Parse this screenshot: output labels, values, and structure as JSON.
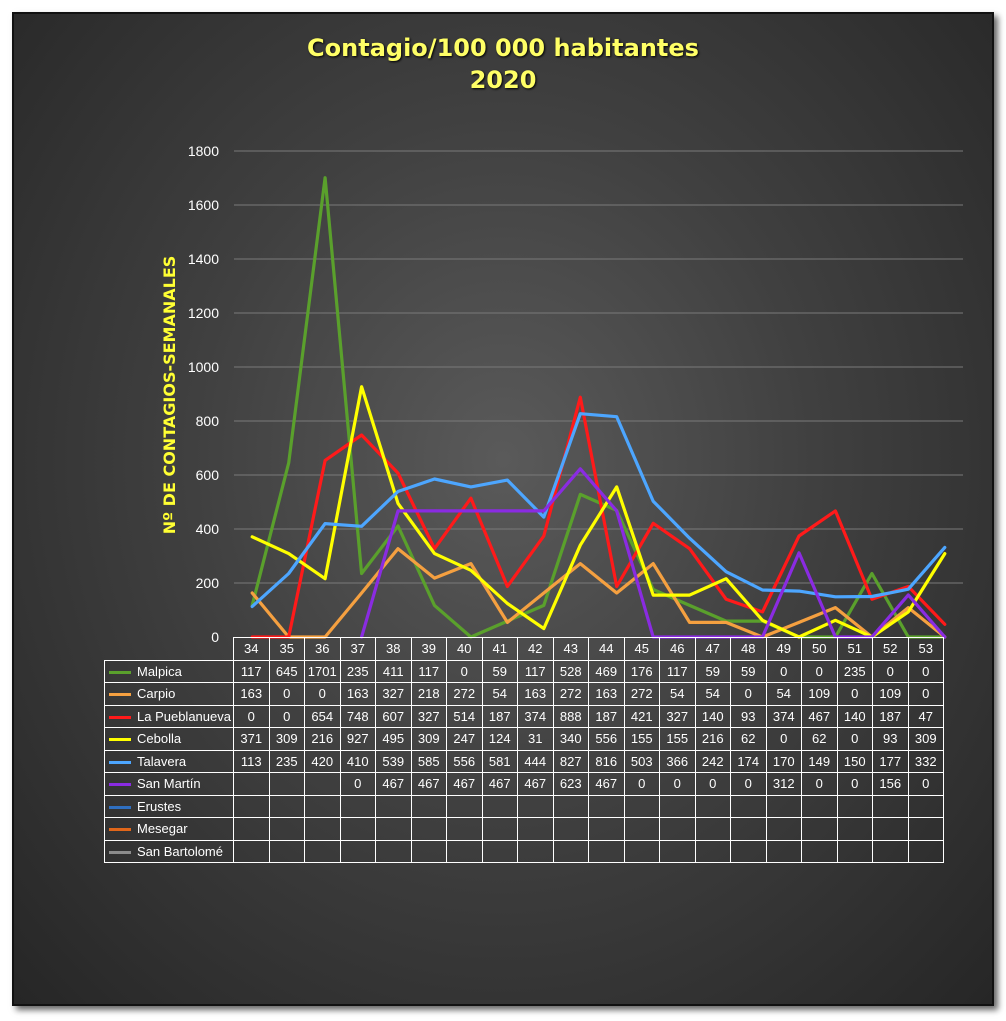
{
  "title_line1": "Contagio/100 000 habitantes",
  "title_line2": "2020",
  "chart_data": {
    "type": "line",
    "title": "Contagio/100 000 habitantes 2020",
    "xlabel": "",
    "ylabel": "Nº DE CONTAGIOS-SEMANALES",
    "ylim": [
      0,
      1800
    ],
    "yticks": [
      0,
      200,
      400,
      600,
      800,
      1000,
      1200,
      1400,
      1600,
      1800
    ],
    "grid": true,
    "legend": "data-table-below",
    "categories": [
      "34",
      "35",
      "36",
      "37",
      "38",
      "39",
      "40",
      "41",
      "42",
      "43",
      "44",
      "45",
      "46",
      "47",
      "48",
      "49",
      "50",
      "51",
      "52",
      "53"
    ],
    "series": [
      {
        "name": "Malpica",
        "color": "#5aa02c",
        "values": [
          117,
          645,
          1701,
          235,
          411,
          117,
          0,
          59,
          117,
          528,
          469,
          176,
          117,
          59,
          59,
          0,
          0,
          235,
          0,
          0
        ]
      },
      {
        "name": "Carpio",
        "color": "#f5a040",
        "values": [
          163,
          0,
          0,
          163,
          327,
          218,
          272,
          54,
          163,
          272,
          163,
          272,
          54,
          54,
          0,
          54,
          109,
          0,
          109,
          0
        ]
      },
      {
        "name": "La Pueblanueva",
        "color": "#ff1a1a",
        "values": [
          0,
          0,
          654,
          748,
          607,
          327,
          514,
          187,
          374,
          888,
          187,
          421,
          327,
          140,
          93,
          374,
          467,
          140,
          187,
          47
        ]
      },
      {
        "name": "Cebolla",
        "color": "#ffff00",
        "values": [
          371,
          309,
          216,
          927,
          495,
          309,
          247,
          124,
          31,
          340,
          556,
          155,
          155,
          216,
          62,
          0,
          62,
          0,
          93,
          309
        ]
      },
      {
        "name": "Talavera",
        "color": "#4da6ff",
        "values": [
          113,
          235,
          420,
          410,
          539,
          585,
          556,
          581,
          444,
          827,
          816,
          503,
          366,
          242,
          174,
          170,
          149,
          150,
          177,
          332
        ]
      },
      {
        "name": "San Martín",
        "color": "#8a2be2",
        "values": [
          null,
          null,
          null,
          0,
          467,
          467,
          467,
          467,
          467,
          623,
          467,
          0,
          0,
          0,
          0,
          312,
          0,
          0,
          156,
          0
        ]
      },
      {
        "name": "Erustes",
        "color": "#2f6fc0",
        "values": [
          null,
          null,
          null,
          null,
          null,
          null,
          null,
          null,
          null,
          null,
          null,
          null,
          null,
          null,
          null,
          null,
          null,
          null,
          null,
          null
        ]
      },
      {
        "name": "Mesegar",
        "color": "#e0661a",
        "values": [
          null,
          null,
          null,
          null,
          null,
          null,
          null,
          null,
          null,
          null,
          null,
          null,
          null,
          null,
          null,
          null,
          null,
          null,
          null,
          null
        ]
      },
      {
        "name": "San Bartolomé",
        "color": "#8c8c8c",
        "values": [
          null,
          null,
          null,
          null,
          null,
          null,
          null,
          null,
          null,
          null,
          null,
          null,
          null,
          null,
          null,
          null,
          null,
          null,
          null,
          null
        ]
      }
    ]
  }
}
